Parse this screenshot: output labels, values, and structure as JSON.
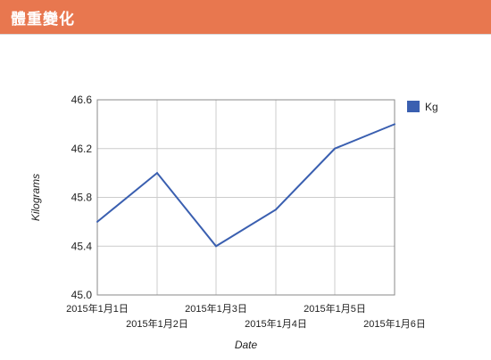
{
  "panel": {
    "title": "體重變化"
  },
  "colors": {
    "header_bg": "#e8774f",
    "line": "#3a5fb0",
    "legend_swatch": "#3a5fb0",
    "grid": "#cccccc",
    "axis_frame": "#888888"
  },
  "chart_data": {
    "type": "line",
    "title": "",
    "xlabel": "Date",
    "ylabel": "Kilograms",
    "ylim": [
      45.0,
      46.6
    ],
    "y_ticks": [
      "45.0",
      "45.4",
      "45.8",
      "46.2",
      "46.6"
    ],
    "grid": true,
    "legend_position": "right",
    "categories": [
      "2015年1月1日",
      "2015年1月2日",
      "2015年1月3日",
      "2015年1月4日",
      "2015年1月5日",
      "2015年1月6日"
    ],
    "series": [
      {
        "name": "Kg",
        "values": [
          45.6,
          46.0,
          45.4,
          45.7,
          46.2,
          46.4
        ]
      }
    ]
  }
}
